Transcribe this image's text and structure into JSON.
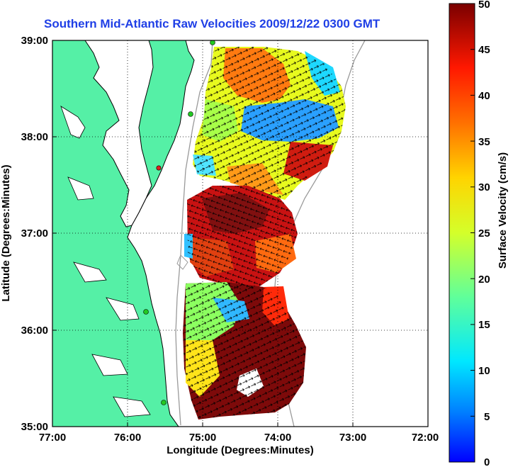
{
  "title": "Southern Mid-Atlantic Raw Velocities 2009/12/22 0300 GMT",
  "map": {
    "xlabel": "Longitude (Degrees:Minutes)",
    "ylabel": "Latitude (Degrees:Minutes)",
    "lon_range": [
      -77,
      -72
    ],
    "lat_range": [
      35,
      39
    ],
    "lon_ticks": [
      "77:00",
      "76:00",
      "75:00",
      "74:00",
      "73:00",
      "72:00"
    ],
    "lat_ticks": [
      "39:00",
      "38:00",
      "37:00",
      "36:00",
      "35:00"
    ],
    "grid": "dotted",
    "land_color": "#55f0a6",
    "coast_color": "#000000",
    "isobath_color": "#9a9a9a",
    "station_color": "#22c822",
    "station_alt_color": "#e02020"
  },
  "colorbar": {
    "label": "Surface Velocity (cm/s)",
    "ticks": [
      "50",
      "45",
      "40",
      "35",
      "30",
      "25",
      "20",
      "15",
      "10",
      "5",
      "0"
    ],
    "range": [
      0,
      50
    ],
    "colormap": "jet"
  }
}
